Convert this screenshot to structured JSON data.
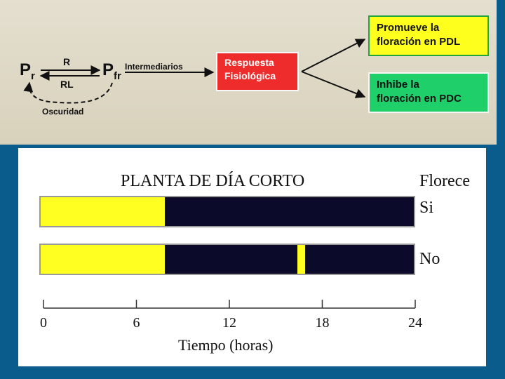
{
  "top": {
    "pr_base": "P",
    "pr_sub": "r",
    "pfr_base": "P",
    "pfr_sub": "fr",
    "forward_label": "R",
    "reverse_label": "RL",
    "dark_label": "Oscuridad",
    "intermediates_label": "Intermediarios",
    "response_line1": "Respuesta",
    "response_line2": "Fisiológica",
    "promote_line1": "Promueve la",
    "promote_line2": "floración en PDL",
    "inhibit_line1": "Inhibe la",
    "inhibit_line2": "floración en PDC",
    "colors": {
      "response": "#ee2c2c",
      "promote": "#ffff1e",
      "inhibit": "#1fcf6a"
    }
  },
  "bottom": {
    "title": "PLANTA DE DÍA CORTO",
    "outcome_header": "Florece",
    "rows": [
      {
        "outcome": "Si",
        "light_hours": [
          [
            0,
            8
          ]
        ],
        "total_hours": 24
      },
      {
        "outcome": "No",
        "light_hours": [
          [
            0,
            8
          ],
          [
            16.5,
            17
          ]
        ],
        "total_hours": 24
      }
    ],
    "axis": {
      "ticks": [
        "0",
        "6",
        "12",
        "18",
        "24"
      ],
      "label": "Tiempo (horas)"
    },
    "colors": {
      "light": "#ffff22",
      "dark": "#0b0a2a"
    }
  }
}
